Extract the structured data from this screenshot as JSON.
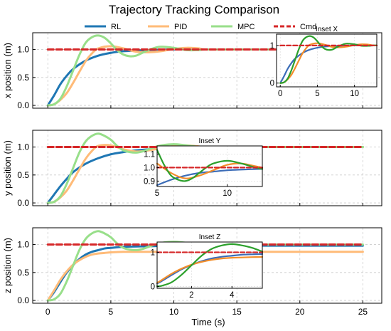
{
  "chart_data": {
    "type": "line",
    "title": "Trajectory Tracking Comparison",
    "xlabel": "Time (s)",
    "xlim": [
      -1.2,
      26.5
    ],
    "xticks": [
      0,
      5,
      10,
      15,
      20,
      25
    ],
    "grid": true,
    "legend": {
      "placement": "top-center",
      "entries": [
        {
          "name": "RL",
          "color": "#1f77b4",
          "style": "solid"
        },
        {
          "name": "PID",
          "color": "#ffbb78",
          "style": "solid"
        },
        {
          "name": "MPC",
          "color": "#98df8a",
          "style": "solid"
        },
        {
          "name": "Cmd",
          "color": "#d62728",
          "style": "dashed"
        }
      ]
    },
    "panels": [
      {
        "ylabel": "x position (m)",
        "ylim": [
          -0.05,
          1.3
        ],
        "yticks": [
          "0.0",
          "0.5",
          "1.0"
        ],
        "ytick_values": [
          0.0,
          0.5,
          1.0
        ],
        "series": [
          {
            "name": "RL",
            "x": [
              0,
              0.5,
              1,
              1.5,
              2,
              3,
              4,
              5,
              6,
              8,
              10,
              12.5,
              15,
              20,
              25
            ],
            "y": [
              0,
              0.18,
              0.38,
              0.53,
              0.65,
              0.8,
              0.89,
              0.94,
              0.97,
              0.99,
              1.0,
              1.0,
              1.0,
              1.0,
              1.0
            ]
          },
          {
            "name": "PID",
            "x": [
              0,
              0.5,
              1,
              1.5,
              2,
              2.5,
              3,
              3.5,
              4,
              5,
              6,
              7,
              8,
              9,
              10,
              11,
              12,
              12.5,
              15,
              20,
              25
            ],
            "y": [
              0,
              0.02,
              0.1,
              0.22,
              0.4,
              0.6,
              0.79,
              0.93,
              1.02,
              1.06,
              1.02,
              0.96,
              0.95,
              0.97,
              1.01,
              1.03,
              1.02,
              1.0,
              1.0,
              1.0,
              1.0
            ]
          },
          {
            "name": "MPC",
            "x": [
              0,
              0.5,
              1,
              1.5,
              2,
              2.5,
              3,
              3.5,
              4,
              4.5,
              5,
              5.5,
              6,
              6.5,
              7,
              7.5,
              8,
              8.5,
              9,
              10,
              11,
              12,
              12.5,
              15,
              20,
              25
            ],
            "y": [
              0,
              0.02,
              0.12,
              0.34,
              0.62,
              0.9,
              1.12,
              1.22,
              1.25,
              1.21,
              1.11,
              0.99,
              0.91,
              0.88,
              0.89,
              0.94,
              0.99,
              1.03,
              1.05,
              1.03,
              0.99,
              0.99,
              1.0,
              1.0,
              1.0,
              1.0
            ]
          },
          {
            "name": "Cmd",
            "x": [
              0,
              25
            ],
            "y": [
              1.0,
              1.0
            ]
          }
        ],
        "inset": {
          "title": "Inset X",
          "xlim": [
            -0.5,
            13
          ],
          "ylim": [
            -0.1,
            1.3
          ],
          "xticks": [
            "0",
            "5",
            "10"
          ],
          "xtick_values": [
            0,
            5,
            10
          ],
          "yticks": [
            "0",
            "1"
          ],
          "ytick_values": [
            0,
            1
          ]
        }
      },
      {
        "ylabel": "y position (m)",
        "ylim": [
          -0.05,
          1.3
        ],
        "yticks": [
          "0.0",
          "0.5",
          "1.0"
        ],
        "ytick_values": [
          0.0,
          0.5,
          1.0
        ],
        "series": [
          {
            "name": "RL",
            "x": [
              0,
              0.5,
              1,
              1.5,
              2,
              3,
              4,
              5,
              6,
              7,
              8,
              9,
              10,
              11,
              12.5,
              15,
              20,
              25
            ],
            "y": [
              0,
              0.15,
              0.3,
              0.43,
              0.55,
              0.7,
              0.8,
              0.87,
              0.91,
              0.94,
              0.96,
              0.97,
              0.98,
              0.985,
              0.99,
              1.0,
              1.0,
              1.0
            ]
          },
          {
            "name": "PID",
            "x": [
              0,
              0.5,
              1,
              1.5,
              2,
              2.5,
              3,
              3.5,
              4,
              5,
              6,
              7,
              8,
              9,
              10,
              11,
              12,
              12.5,
              15,
              20,
              25
            ],
            "y": [
              0,
              0.02,
              0.1,
              0.22,
              0.4,
              0.6,
              0.79,
              0.93,
              1.02,
              1.03,
              0.96,
              0.92,
              0.94,
              0.98,
              1.02,
              1.03,
              1.01,
              1.0,
              1.0,
              1.0,
              1.0
            ]
          },
          {
            "name": "MPC",
            "x": [
              0,
              0.5,
              1,
              1.5,
              2,
              2.5,
              3,
              3.5,
              4,
              4.5,
              5,
              5.5,
              6,
              6.5,
              7,
              7.5,
              8,
              8.5,
              9,
              10,
              11,
              12,
              12.5,
              15,
              20,
              25
            ],
            "y": [
              0,
              0.02,
              0.12,
              0.34,
              0.62,
              0.9,
              1.1,
              1.2,
              1.24,
              1.2,
              1.13,
              1.02,
              0.94,
              0.91,
              0.9,
              0.92,
              0.96,
              1.0,
              1.03,
              1.05,
              1.03,
              1.0,
              0.99,
              1.0,
              1.0,
              1.0
            ]
          },
          {
            "name": "Cmd",
            "x": [
              0,
              25
            ],
            "y": [
              1.0,
              1.0
            ]
          }
        ],
        "inset": {
          "title": "Inset Y",
          "xlim": [
            5,
            12.5
          ],
          "ylim": [
            0.86,
            1.16
          ],
          "xticks": [
            "5",
            "10"
          ],
          "xtick_values": [
            5,
            10
          ],
          "yticks": [
            "0.9",
            "1.0",
            "1.1"
          ],
          "ytick_values": [
            0.9,
            1.0,
            1.1
          ]
        }
      },
      {
        "ylabel": "z position (m)",
        "ylim": [
          -0.05,
          1.3
        ],
        "yticks": [
          "0.0",
          "0.5",
          "1.0"
        ],
        "ytick_values": [
          0.0,
          0.5,
          1.0
        ],
        "series": [
          {
            "name": "RL",
            "x": [
              0,
              0.5,
              1,
              1.5,
              2,
              2.5,
              3,
              3.5,
              4,
              4.5,
              5,
              6,
              8,
              10,
              12.5,
              15,
              20,
              25
            ],
            "y": [
              0,
              0.15,
              0.33,
              0.5,
              0.63,
              0.74,
              0.82,
              0.87,
              0.9,
              0.93,
              0.94,
              0.96,
              0.97,
              0.98,
              0.98,
              0.98,
              0.98,
              0.98
            ]
          },
          {
            "name": "PID",
            "x": [
              0,
              0.5,
              1,
              1.5,
              2,
              2.5,
              3,
              3.5,
              4,
              4.5,
              5,
              6,
              8,
              10,
              12.5,
              15,
              20,
              25
            ],
            "y": [
              0,
              0.18,
              0.37,
              0.52,
              0.64,
              0.72,
              0.78,
              0.82,
              0.84,
              0.85,
              0.86,
              0.87,
              0.87,
              0.87,
              0.87,
              0.87,
              0.87,
              0.87
            ]
          },
          {
            "name": "MPC",
            "x": [
              0,
              0.5,
              1,
              1.5,
              2,
              2.5,
              3,
              3.5,
              4,
              4.5,
              5,
              5.5,
              6,
              6.5,
              7,
              7.5,
              8,
              8.5,
              9,
              10,
              11,
              12,
              12.5,
              15,
              20,
              25
            ],
            "y": [
              0,
              0.02,
              0.12,
              0.34,
              0.62,
              0.9,
              1.1,
              1.2,
              1.24,
              1.2,
              1.13,
              1.02,
              0.94,
              0.91,
              0.9,
              0.92,
              0.96,
              1.0,
              1.03,
              1.05,
              1.03,
              1.0,
              0.99,
              1.0,
              1.0,
              1.0
            ]
          },
          {
            "name": "Cmd",
            "x": [
              0,
              25
            ],
            "y": [
              1.0,
              1.0
            ]
          }
        ],
        "inset": {
          "title": "Inset Z",
          "xlim": [
            0.3,
            5.5
          ],
          "ylim": [
            -0.05,
            1.3
          ],
          "xticks": [
            "2",
            "4"
          ],
          "xtick_values": [
            2,
            4
          ],
          "yticks": [
            "0",
            "1"
          ],
          "ytick_values": [
            0,
            1
          ]
        }
      }
    ]
  }
}
